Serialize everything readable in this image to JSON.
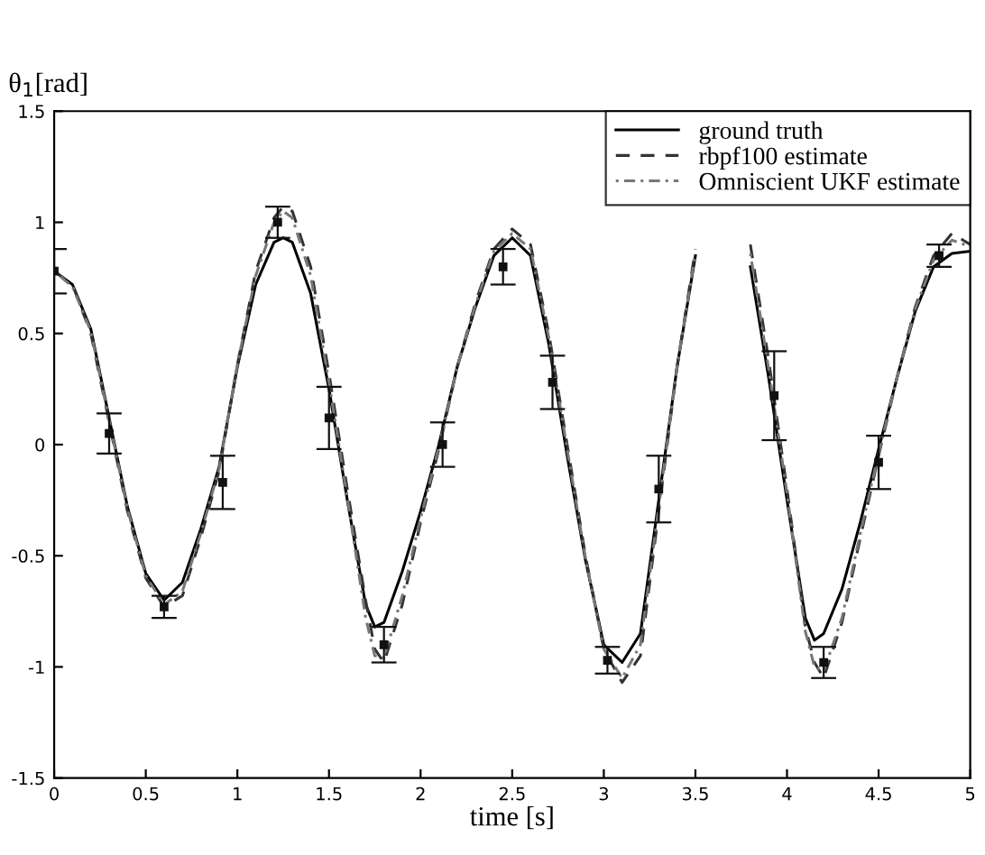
{
  "chart_data": {
    "type": "line",
    "xlabel": "time [s]",
    "ylabel": "θ$_{1}$[rad]",
    "xlim": [
      0,
      5
    ],
    "ylim": [
      -1.5,
      1.5
    ],
    "xticks": [
      0,
      0.5,
      1,
      1.5,
      2,
      2.5,
      3,
      3.5,
      4,
      4.5,
      5
    ],
    "yticks": [
      -1.5,
      -1,
      -0.5,
      0,
      0.5,
      1,
      1.5
    ],
    "grid": false,
    "legend": "top right",
    "marker": "none",
    "x": [
      0,
      0.1,
      0.2,
      0.3,
      0.4,
      0.5,
      0.6,
      0.7,
      0.8,
      0.9,
      1.0,
      1.1,
      1.2,
      1.25,
      1.3,
      1.4,
      1.5,
      1.6,
      1.7,
      1.75,
      1.8,
      1.9,
      2.0,
      2.1,
      2.2,
      2.3,
      2.4,
      2.5,
      2.6,
      2.7,
      2.8,
      2.9,
      3.0,
      3.1,
      3.2,
      3.3,
      3.4,
      3.5,
      3.6,
      3.7,
      3.8,
      3.9,
      4.0,
      4.1,
      4.15,
      4.2,
      4.3,
      4.4,
      4.5,
      4.6,
      4.7,
      4.8,
      4.9,
      5.0
    ],
    "series": [
      {
        "name": "ground truth",
        "color": "#000000",
        "line_style": "solid",
        "values": [
          0.78,
          0.72,
          0.52,
          0.12,
          -0.28,
          -0.58,
          -0.7,
          -0.62,
          -0.38,
          -0.1,
          0.35,
          0.72,
          0.91,
          0.93,
          0.91,
          0.68,
          0.25,
          -0.25,
          -0.72,
          -0.82,
          -0.8,
          -0.57,
          -0.3,
          0.0,
          0.35,
          0.62,
          0.85,
          0.93,
          0.85,
          0.45,
          -0.05,
          -0.52,
          -0.9,
          -0.98,
          -0.85,
          -0.25,
          0.35,
          0.85,
          null,
          null,
          0.8,
          0.3,
          -0.25,
          -0.78,
          -0.88,
          -0.85,
          -0.65,
          -0.35,
          -0.02,
          0.3,
          0.6,
          0.8,
          0.86,
          0.87
        ]
      },
      {
        "name": "rbpf100 estimate",
        "color": "#333333",
        "line_style": "dashed",
        "values": [
          0.78,
          0.72,
          0.5,
          0.1,
          -0.3,
          -0.6,
          -0.73,
          -0.68,
          -0.42,
          -0.12,
          0.36,
          0.78,
          1.02,
          1.07,
          1.05,
          0.8,
          0.32,
          -0.2,
          -0.7,
          -0.92,
          -0.98,
          -0.72,
          -0.35,
          -0.02,
          0.35,
          0.64,
          0.88,
          0.97,
          0.9,
          0.5,
          0.0,
          -0.5,
          -0.92,
          -1.07,
          -0.95,
          -0.3,
          0.35,
          0.88,
          null,
          null,
          0.9,
          0.38,
          -0.2,
          -0.82,
          -0.98,
          -1.05,
          -0.8,
          -0.42,
          -0.05,
          0.3,
          0.62,
          0.85,
          0.95,
          0.9
        ]
      },
      {
        "name": "Omniscient UKF estimate",
        "color": "#777777",
        "line_style": "dotted",
        "values": [
          0.78,
          0.71,
          0.51,
          0.11,
          -0.29,
          -0.59,
          -0.72,
          -0.66,
          -0.4,
          -0.11,
          0.36,
          0.76,
          1.0,
          1.05,
          1.02,
          0.76,
          0.28,
          -0.24,
          -0.78,
          -0.95,
          -0.96,
          -0.68,
          -0.33,
          -0.01,
          0.35,
          0.63,
          0.87,
          0.95,
          0.88,
          0.48,
          -0.02,
          -0.51,
          -0.92,
          -1.05,
          -0.9,
          -0.28,
          0.35,
          0.86,
          null,
          null,
          0.86,
          0.34,
          -0.22,
          -0.84,
          -1.0,
          -1.02,
          -0.78,
          -0.4,
          -0.04,
          0.3,
          0.61,
          0.83,
          0.92,
          0.89
        ]
      },
      {
        "type": "scatter",
        "color": "#111111",
        "marker": "square",
        "x": [
          0,
          0.3,
          0.6,
          0.92,
          1.22,
          1.5,
          1.8,
          2.12,
          2.45,
          2.72,
          3.02,
          3.3,
          3.93,
          4.2,
          4.5,
          4.83
        ],
        "values": [
          0.78,
          0.05,
          -0.73,
          -0.17,
          1.0,
          0.12,
          -0.9,
          0.0,
          0.8,
          0.28,
          -0.97,
          -0.2,
          0.22,
          -0.98,
          -0.08,
          0.85
        ],
        "errors": [
          0.1,
          0.09,
          0.05,
          0.12,
          0.07,
          0.14,
          0.08,
          0.1,
          0.08,
          0.12,
          0.06,
          0.15,
          0.2,
          0.07,
          0.12,
          0.05
        ]
      }
    ]
  }
}
